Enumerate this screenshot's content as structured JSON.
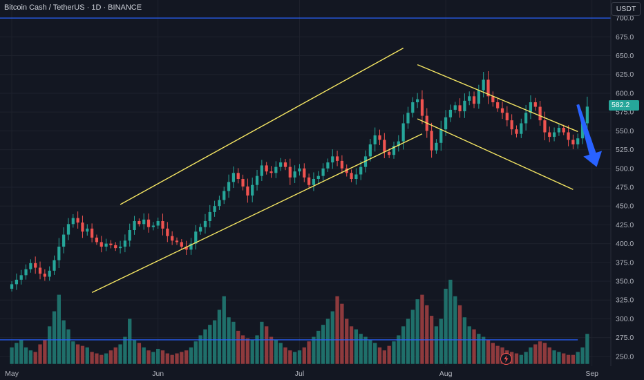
{
  "header": {
    "symbol_title": "Bitcoin Cash / TetherUS · 1D · BINANCE",
    "currency_button": "USDT"
  },
  "price_scale": {
    "current_price_label": "582.2"
  },
  "colors": {
    "background": "#131722",
    "grid": "#1e222d",
    "up": "#26a69a",
    "down": "#ef5350",
    "vol_up": "#1f6f6a",
    "vol_down": "#8e3a3d",
    "horizontal_line": "#2962ff",
    "channel_lines": "#f5e663",
    "arrow": "#2962ff",
    "axis_text": "#b2b5be"
  },
  "icons": {
    "lightning": "lightning-icon"
  },
  "chart_data": {
    "type": "candlestick",
    "title": "Bitcoin Cash / TetherUS · 1D · BINANCE",
    "quote_currency": "USDT",
    "y_ticks": [
      700,
      675,
      650,
      625,
      600,
      575,
      550,
      525,
      500,
      475,
      450,
      425,
      400,
      375,
      350,
      325,
      300,
      275,
      250
    ],
    "y_tick_labels": [
      "700.0",
      "675.0",
      "650.0",
      "625.0",
      "600.0",
      "575.0",
      "550.0",
      "525.0",
      "500.0",
      "475.0",
      "450.0",
      "425.0",
      "400.0",
      "375.0",
      "350.0",
      "325.0",
      "300.0",
      "275.0",
      "250.0"
    ],
    "ylim": [
      237,
      724
    ],
    "x_labels": [
      {
        "label": "May",
        "day": 0
      },
      {
        "label": "Jun",
        "day": 31
      },
      {
        "label": "Jul",
        "day": 61
      },
      {
        "label": "Aug",
        "day": 92
      },
      {
        "label": "Sep",
        "day": 123
      }
    ],
    "day_range": [
      -2.5,
      127
    ],
    "current_price": 582.2,
    "horizontal_lines": [
      700,
      272
    ],
    "closes": [
      346,
      352,
      358,
      366,
      374,
      368,
      360,
      356,
      364,
      378,
      396,
      412,
      426,
      434,
      428,
      416,
      420,
      408,
      402,
      396,
      400,
      398,
      394,
      396,
      404,
      418,
      430,
      426,
      432,
      422,
      424,
      430,
      420,
      410,
      404,
      402,
      396,
      392,
      400,
      416,
      422,
      430,
      442,
      450,
      458,
      470,
      482,
      494,
      486,
      476,
      464,
      478,
      490,
      504,
      496,
      494,
      502,
      508,
      502,
      488,
      496,
      500,
      488,
      478,
      486,
      490,
      500,
      508,
      516,
      510,
      500,
      494,
      486,
      492,
      502,
      516,
      532,
      544,
      538,
      522,
      518,
      530,
      536,
      560,
      574,
      588,
      592,
      570,
      550,
      524,
      534,
      552,
      568,
      578,
      584,
      576,
      590,
      596,
      586,
      604,
      618,
      596,
      588,
      580,
      574,
      564,
      552,
      546,
      560,
      574,
      588,
      582,
      564,
      548,
      542,
      548,
      554,
      548,
      538,
      532,
      540,
      560,
      582.2
    ],
    "volume_axis": {
      "min": 240,
      "max": 360
    },
    "volumes": [
      262,
      268,
      272,
      262,
      258,
      256,
      266,
      272,
      290,
      310,
      332,
      298,
      286,
      270,
      266,
      264,
      262,
      256,
      254,
      252,
      254,
      258,
      262,
      266,
      276,
      300,
      272,
      268,
      262,
      258,
      256,
      260,
      258,
      254,
      252,
      254,
      256,
      258,
      262,
      270,
      278,
      286,
      292,
      298,
      312,
      330,
      302,
      296,
      284,
      278,
      274,
      272,
      278,
      296,
      290,
      276,
      272,
      268,
      262,
      258,
      256,
      258,
      262,
      270,
      276,
      284,
      292,
      300,
      310,
      330,
      320,
      300,
      290,
      286,
      280,
      276,
      272,
      268,
      262,
      258,
      264,
      270,
      278,
      290,
      300,
      312,
      326,
      332,
      318,
      304,
      290,
      300,
      340,
      352,
      330,
      318,
      302,
      290,
      286,
      280,
      276,
      272,
      268,
      264,
      262,
      258,
      256,
      254,
      252,
      256,
      262,
      266,
      270,
      268,
      262,
      258,
      256,
      254,
      252,
      252,
      256,
      262,
      280
    ],
    "channel_lines": [
      {
        "from": [
          23,
          452
        ],
        "to": [
          83,
          660
        ]
      },
      {
        "from": [
          17,
          335
        ],
        "to": [
          87,
          546
        ]
      },
      {
        "from": [
          86,
          638
        ],
        "to": [
          120,
          549
        ]
      },
      {
        "from": [
          86,
          566
        ],
        "to": [
          119,
          472
        ]
      }
    ],
    "arrow": {
      "from": [
        120,
        585
      ],
      "to": [
        124,
        502
      ]
    },
    "grid": true
  }
}
